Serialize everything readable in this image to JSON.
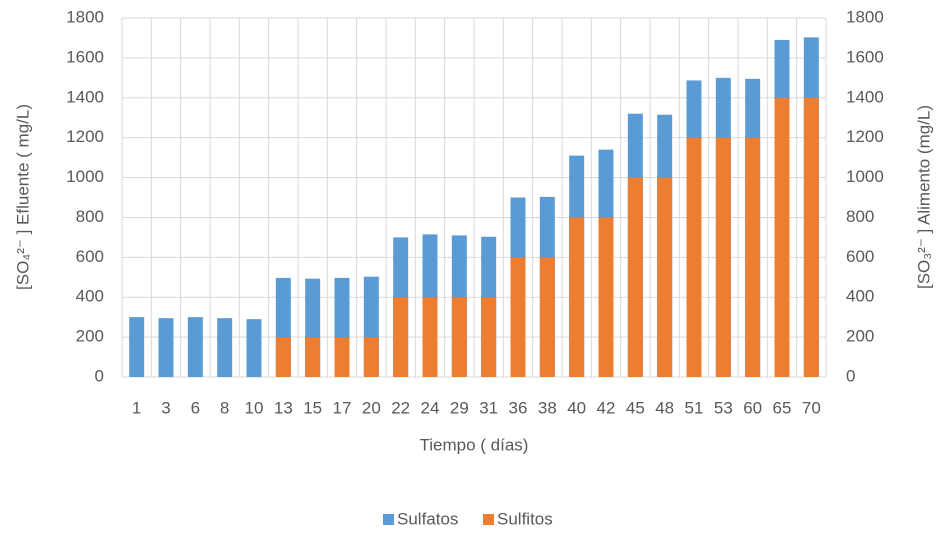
{
  "chart_data": {
    "type": "bar",
    "xlabel": "Tiempo ( días)",
    "ylabel": "[SO₄²⁻ ] Efluente ( mg/L)",
    "y2label": "[SO₃²⁻ ] Alimento (mg/L)",
    "categories": [
      "1",
      "3",
      "6",
      "8",
      "10",
      "13",
      "15",
      "17",
      "20",
      "22",
      "24",
      "29",
      "31",
      "36",
      "38",
      "40",
      "42",
      "45",
      "48",
      "51",
      "53",
      "60",
      "65",
      "70"
    ],
    "series": [
      {
        "name": "Sulfatos",
        "color": "#5b9bd5",
        "values": [
          300,
          295,
          300,
          295,
          290,
          497,
          493,
          497,
          503,
          700,
          715,
          710,
          703,
          900,
          903,
          1110,
          1140,
          1320,
          1315,
          1487,
          1500,
          1495,
          1690,
          1703
        ]
      },
      {
        "name": "Sulfitos",
        "color": "#ed7d31",
        "axis": "y2",
        "values": [
          0,
          0,
          0,
          0,
          0,
          200,
          200,
          200,
          200,
          400,
          400,
          400,
          400,
          600,
          600,
          800,
          800,
          1000,
          1000,
          1200,
          1200,
          1200,
          1400,
          1400
        ]
      }
    ],
    "ylim": [
      0,
      1800
    ],
    "yticks": [
      0,
      200,
      400,
      600,
      800,
      1000,
      1200,
      1400,
      1600,
      1800
    ],
    "y2lim": [
      0,
      1800
    ],
    "y2ticks": [
      0,
      200,
      400,
      600,
      800,
      1000,
      1200,
      1400,
      1600,
      1800
    ],
    "grid": true,
    "legend": "bottom"
  }
}
